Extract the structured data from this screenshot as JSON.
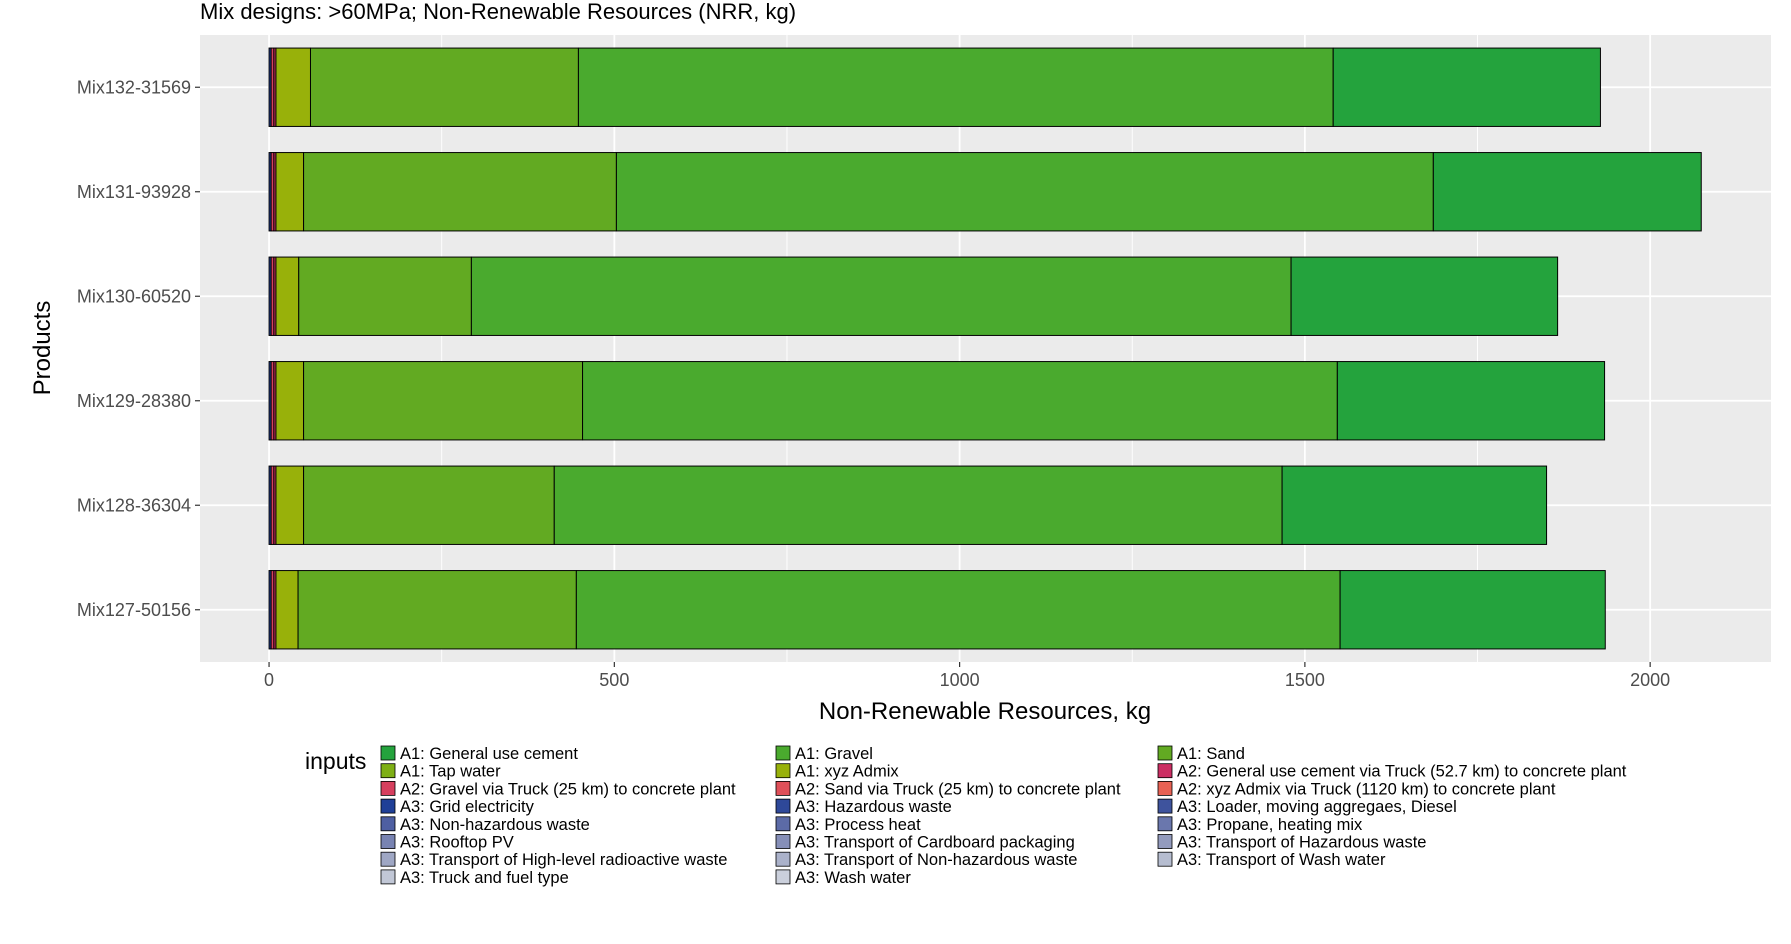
{
  "chart_data": {
    "type": "bar",
    "orientation": "horizontal",
    "stacked": true,
    "title": "Mix designs: >60MPa; Non-Renewable Resources (NRR, kg)",
    "xlabel": "Non-Renewable Resources, kg",
    "ylabel": "Products",
    "xlim": [
      -100,
      2175
    ],
    "x_ticks": [
      0,
      500,
      1000,
      1500,
      2000
    ],
    "grid": true,
    "legend_position": "bottom",
    "legend_title": "inputs",
    "legend_entries": [
      {
        "label": "A1: General use cement",
        "color": "#24a33d"
      },
      {
        "label": "A1: Gravel",
        "color": "#4aaa2e"
      },
      {
        "label": "A1: Sand",
        "color": "#62aa22"
      },
      {
        "label": "A1: Tap water",
        "color": "#7eaf15"
      },
      {
        "label": "A1: xyz Admix",
        "color": "#98b10a"
      },
      {
        "label": "A2: General use cement via Truck (52.7 km) to concrete plant",
        "color": "#cc2e63"
      },
      {
        "label": "A2: Gravel via Truck (25 km) to concrete plant",
        "color": "#d63f5e"
      },
      {
        "label": "A2: Sand via Truck (25 km) to concrete plant",
        "color": "#df5059"
      },
      {
        "label": "A2: xyz Admix via Truck (1120 km) to concrete plant",
        "color": "#e86254"
      },
      {
        "label": "A3: Grid electricity",
        "color": "#1f3f97"
      },
      {
        "label": "A3: Hazardous waste",
        "color": "#2e4899"
      },
      {
        "label": "A3: Loader, moving aggregaes, Diesel",
        "color": "#3e539d"
      },
      {
        "label": "A3: Non-hazardous waste",
        "color": "#4e5fa2"
      },
      {
        "label": "A3: Process heat",
        "color": "#5c6ba7"
      },
      {
        "label": "A3: Propane, heating mix",
        "color": "#6a77ad"
      },
      {
        "label": "A3: Rooftop PV",
        "color": "#7883b2"
      },
      {
        "label": "A3: Transport of Cardboard packaging",
        "color": "#868fb8"
      },
      {
        "label": "A3: Transport of Hazardous waste",
        "color": "#939bbe"
      },
      {
        "label": "A3: Transport of High-level radioactive waste",
        "color": "#9fa7c4"
      },
      {
        "label": "A3: Transport of Non-hazardous waste",
        "color": "#abb2ca"
      },
      {
        "label": "A3: Transport of Wash water",
        "color": "#b6bdd0"
      },
      {
        "label": "A3: Truck and fuel type",
        "color": "#c1c7d6"
      },
      {
        "label": "A3: Wash water",
        "color": "#cbd0dc"
      }
    ],
    "categories": [
      "Mix132-31569",
      "Mix131-93928",
      "Mix130-60520",
      "Mix129-28380",
      "Mix128-36304",
      "Mix127-50156"
    ],
    "series": [
      {
        "name": "A3: Grid electricity",
        "color": "#1f3f97",
        "values": [
          3,
          3,
          3,
          3,
          3,
          3
        ]
      },
      {
        "name": "A2: Gravel via Truck (25 km) to concrete plant",
        "color": "#d63f5e",
        "values": [
          4,
          4,
          4,
          4,
          4,
          4
        ]
      },
      {
        "name": "A2: General use cement via Truck (52.7 km) to concrete plant",
        "color": "#cc2e63",
        "values": [
          3,
          3,
          3,
          3,
          3,
          3
        ]
      },
      {
        "name": "A1: xyz Admix",
        "color": "#98b10a",
        "values": [
          50,
          40,
          33,
          40,
          40,
          32
        ]
      },
      {
        "name": "A1: Sand",
        "color": "#62aa22",
        "values": [
          388,
          453,
          250,
          404,
          363,
          403
        ]
      },
      {
        "name": "A1: Gravel",
        "color": "#4aaa2e",
        "values": [
          1093,
          1183,
          1187,
          1093,
          1054,
          1106
        ]
      },
      {
        "name": "A1: General use cement",
        "color": "#24a33d",
        "values": [
          387,
          388,
          386,
          387,
          383,
          384
        ]
      }
    ]
  }
}
